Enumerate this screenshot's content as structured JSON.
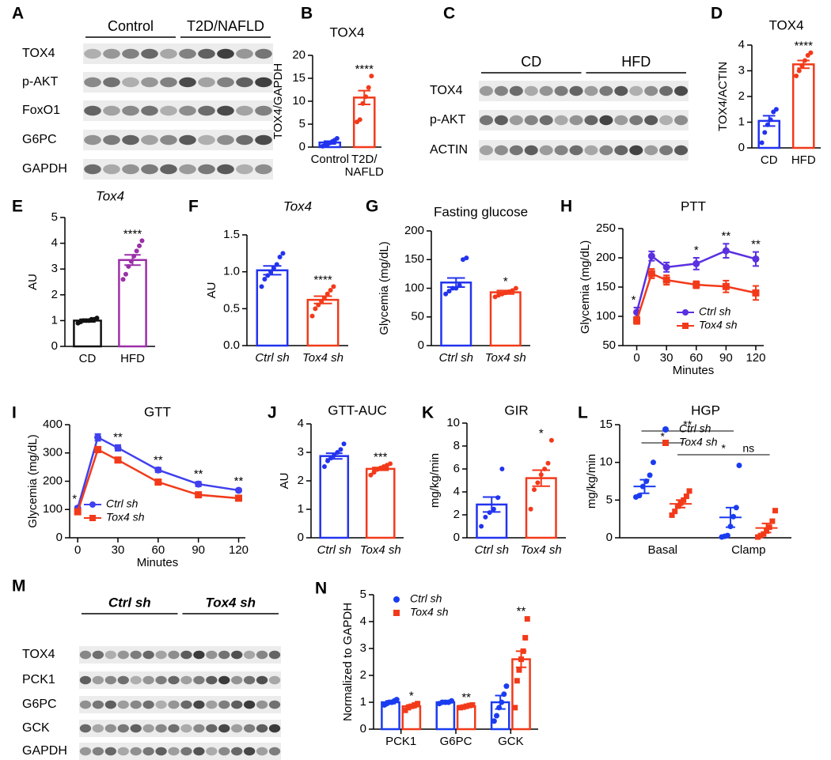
{
  "blots": [
    {
      "panel": "A",
      "groups": [
        "Control",
        "T2D/NAFLD"
      ],
      "rows": [
        "TOX4",
        "p-AKT",
        "FoxO1",
        "G6PC",
        "GAPDH"
      ]
    },
    {
      "panel": "C",
      "groups": [
        "CD",
        "HFD"
      ],
      "rows": [
        "TOX4",
        "p-AKT",
        "ACTIN"
      ]
    },
    {
      "panel": "M",
      "groups": [
        "Ctrl sh",
        "Tox4 sh"
      ],
      "rows": [
        "TOX4",
        "PCK1",
        "G6PC",
        "GCK",
        "GAPDH"
      ]
    }
  ],
  "chart_data": [
    {
      "type": "bar",
      "panel": "B",
      "title": "TOX4",
      "ylabel": "TOX4/GAPDH",
      "categories": [
        "Control",
        [
          "T2D/",
          "NAFLD"
        ]
      ],
      "colors": [
        "#2233ee",
        "#f23a1a"
      ],
      "values": [
        1.0,
        10.8
      ],
      "errors": [
        0.3,
        1.5
      ],
      "points": [
        [
          0.2,
          0.4,
          0.6,
          0.9,
          1.2,
          1.5,
          1.9
        ],
        [
          5.5,
          6,
          9.5,
          11,
          13,
          15.5
        ]
      ],
      "ylim": [
        0,
        20
      ],
      "yticks": [
        0,
        5,
        10,
        15,
        20
      ],
      "significance": [
        {
          "index": 1,
          "text": "****"
        }
      ]
    },
    {
      "type": "bar",
      "panel": "D",
      "title": "TOX4",
      "ylabel": "TOX4/ACTIN",
      "categories": [
        "CD",
        "HFD"
      ],
      "colors": [
        "#2233ee",
        "#f23a1a"
      ],
      "values": [
        1.05,
        3.25
      ],
      "errors": [
        0.2,
        0.15
      ],
      "points": [
        [
          0.2,
          0.6,
          0.9,
          1.1,
          1.4,
          1.5
        ],
        [
          2.8,
          3.0,
          3.2,
          3.4,
          3.6,
          3.7
        ]
      ],
      "ylim": [
        0,
        4
      ],
      "yticks": [
        0,
        1,
        2,
        3,
        4
      ],
      "significance": [
        {
          "index": 1,
          "text": "****"
        }
      ]
    },
    {
      "type": "bar",
      "panel": "E",
      "title": "Tox4",
      "title_italic": true,
      "ylabel": "AU",
      "categories": [
        "CD",
        "HFD"
      ],
      "colors": [
        "#111111",
        "#9b2fa8"
      ],
      "values": [
        1.0,
        3.35
      ],
      "errors": [
        0.05,
        0.2
      ],
      "points": [
        [
          0.9,
          0.95,
          1,
          1,
          1,
          1.05,
          1.05,
          1.1
        ],
        [
          2.6,
          2.8,
          3.1,
          3.3,
          3.5,
          3.7,
          3.9,
          4.1
        ]
      ],
      "ylim": [
        0,
        5
      ],
      "yticks": [
        0,
        1,
        2,
        3,
        4,
        5
      ],
      "significance": [
        {
          "index": 1,
          "text": "****"
        }
      ]
    },
    {
      "type": "bar",
      "panel": "F",
      "title": "Tox4",
      "title_italic": true,
      "category_italic": true,
      "ylabel": "AU",
      "categories": [
        "Ctrl sh",
        "Tox4 sh"
      ],
      "colors": [
        "#2233ee",
        "#f23a1a"
      ],
      "values": [
        1.02,
        0.62
      ],
      "errors": [
        0.06,
        0.05
      ],
      "points": [
        [
          0.8,
          0.9,
          0.95,
          1.0,
          1.05,
          1.1,
          1.2,
          1.25
        ],
        [
          0.4,
          0.5,
          0.55,
          0.6,
          0.65,
          0.7,
          0.75,
          0.8
        ]
      ],
      "ylim": [
        0,
        1.5
      ],
      "yticks": [
        {
          "value": 0,
          "label": "0.0"
        },
        0.5,
        {
          "value": 1,
          "label": "1.0"
        },
        1.5
      ],
      "significance": [
        {
          "index": 1,
          "text": "****"
        }
      ]
    },
    {
      "type": "bar",
      "panel": "G",
      "title": "Fasting glucose",
      "category_italic": true,
      "ylabel": "Glycemia (mg/dL)",
      "categories": [
        "Ctrl sh",
        "Tox4 sh"
      ],
      "colors": [
        "#2233ee",
        "#f23a1a"
      ],
      "values": [
        110,
        93
      ],
      "errors": [
        8,
        3
      ],
      "points": [
        [
          90,
          95,
          100,
          100,
          105,
          150,
          153
        ],
        [
          85,
          88,
          90,
          92,
          94,
          96,
          100
        ]
      ],
      "ylim": [
        0,
        200
      ],
      "yticks": [
        0,
        50,
        100,
        150,
        200
      ],
      "significance": [
        {
          "index": 1,
          "text": "*"
        }
      ]
    },
    {
      "type": "line",
      "panel": "H",
      "title": "PTT",
      "ylabel": "Glycemia (mg/dL)",
      "xlabel": "Minutes",
      "x": [
        0,
        15,
        30,
        60,
        90,
        120
      ],
      "xlim": [
        -14,
        128
      ],
      "xticks": [
        0,
        30,
        60,
        90,
        120
      ],
      "ylim": [
        50,
        250
      ],
      "yticks": [
        50,
        100,
        150,
        200,
        250
      ],
      "legend": "lower right",
      "series": [
        {
          "name": "Ctrl sh",
          "color": "#5a30e0",
          "marker": "circle",
          "values": [
            107,
            203,
            184,
            190,
            212,
            198
          ],
          "errors": [
            8,
            8,
            8,
            10,
            12,
            12
          ]
        },
        {
          "name": "Tox4 sh",
          "color": "#f23a1a",
          "marker": "square",
          "values": [
            93,
            173,
            162,
            154,
            151,
            140
          ],
          "errors": [
            6,
            8,
            8,
            6,
            10,
            12
          ]
        }
      ],
      "significance": [
        {
          "index": 0,
          "text": "*"
        },
        {
          "index": 3,
          "text": "*"
        },
        {
          "index": 4,
          "text": "**"
        },
        {
          "index": 5,
          "text": "**"
        }
      ]
    },
    {
      "type": "line",
      "panel": "I",
      "title": "GTT",
      "ylabel": "Glycemia (mg/dL)",
      "xlabel": "Minutes",
      "x": [
        0,
        15,
        30,
        60,
        90,
        120
      ],
      "xlim": [
        -6,
        125
      ],
      "xticks": [
        0,
        30,
        60,
        90,
        120
      ],
      "ylim": [
        0,
        400
      ],
      "yticks": [
        0,
        100,
        200,
        300,
        400
      ],
      "legend": "lower left",
      "series": [
        {
          "name": "Ctrl sh",
          "color": "#4040ee",
          "marker": "circle",
          "values": [
            105,
            355,
            318,
            240,
            190,
            168
          ],
          "errors": [
            5,
            12,
            10,
            8,
            8,
            5
          ]
        },
        {
          "name": "Tox4 sh",
          "color": "#f23a1a",
          "marker": "square",
          "values": [
            92,
            312,
            275,
            197,
            152,
            140
          ],
          "errors": [
            4,
            10,
            8,
            6,
            5,
            4
          ]
        }
      ],
      "significance": [
        {
          "index": 0,
          "text": "*"
        },
        {
          "index": 2,
          "text": "**"
        },
        {
          "index": 3,
          "text": "**"
        },
        {
          "index": 4,
          "text": "**"
        },
        {
          "index": 5,
          "text": "**"
        }
      ]
    },
    {
      "type": "bar",
      "panel": "J",
      "title": "GTT-AUC",
      "category_italic": true,
      "ylabel": "AU",
      "categories": [
        "Ctrl sh",
        "Tox4 sh"
      ],
      "colors": [
        "#2233ee",
        "#f23a1a"
      ],
      "values": [
        2.87,
        2.42
      ],
      "errors": [
        0.1,
        0.05
      ],
      "points": [
        [
          2.5,
          2.7,
          2.8,
          2.9,
          3.0,
          3.1,
          3.3
        ],
        [
          2.2,
          2.3,
          2.4,
          2.45,
          2.5,
          2.55,
          2.6
        ]
      ],
      "ylim": [
        0,
        4
      ],
      "yticks": [
        0,
        1,
        2,
        3,
        4
      ],
      "significance": [
        {
          "index": 1,
          "text": "***"
        }
      ]
    },
    {
      "type": "bar",
      "panel": "K",
      "title": "GIR",
      "category_italic": true,
      "ylabel": "mg/kg/min",
      "categories": [
        "Ctrl sh",
        "Tox4 sh"
      ],
      "colors": [
        "#2233ee",
        "#f23a1a"
      ],
      "values": [
        2.9,
        5.2
      ],
      "errors": [
        0.65,
        0.7
      ],
      "points": [
        [
          1.0,
          1.8,
          2.2,
          2.5,
          3.5,
          6.0
        ],
        [
          2.5,
          4.2,
          4.8,
          5.5,
          6.0,
          6.5,
          8.5
        ]
      ],
      "ylim": [
        0,
        10
      ],
      "yticks": [
        0,
        2,
        4,
        6,
        8,
        10
      ],
      "significance": [
        {
          "index": 1,
          "text": "*"
        }
      ]
    },
    {
      "type": "dot",
      "panel": "L",
      "title": "HGP",
      "ylabel": "mg/kg/min",
      "categories": [
        "Basal",
        "Clamp"
      ],
      "ylim": [
        0,
        15
      ],
      "yticks": [
        0,
        5,
        10,
        15
      ],
      "legend": "upper right",
      "series": [
        {
          "name": "Ctrl sh",
          "color": "#1a3cf0",
          "marker": "circle",
          "values": [
            6.8,
            2.7
          ],
          "errors": [
            0.9,
            1.3
          ],
          "points": [
            [
              5.4,
              5.6,
              6.8,
              7.5,
              8.3,
              10.0
            ],
            [
              0.1,
              0.2,
              0.3,
              1.5,
              2.8,
              4.0,
              9.6
            ]
          ]
        },
        {
          "name": "Tox4 sh",
          "color": "#f23a1a",
          "marker": "square",
          "values": [
            4.5,
            1.3
          ],
          "errors": [
            0.5,
            0.6
          ],
          "points": [
            [
              3.0,
              3.5,
              4.2,
              4.6,
              5.0,
              5.5,
              6.2
            ],
            [
              0.1,
              0.3,
              0.5,
              0.9,
              1.4,
              2.2,
              3.6
            ]
          ]
        }
      ],
      "comparisons": [
        {
          "from": [
            0,
            0
          ],
          "to": [
            1,
            0
          ],
          "text": "**"
        },
        {
          "from": [
            0,
            0
          ],
          "to": [
            0,
            1
          ],
          "text": "*"
        },
        {
          "from": [
            0,
            1
          ],
          "to": [
            1,
            1
          ],
          "text": "*"
        },
        {
          "from": [
            1,
            0
          ],
          "to": [
            1,
            1
          ],
          "text": "ns"
        }
      ]
    },
    {
      "type": "grouped_bar",
      "panel": "N",
      "ylabel": "Normalized to GAPDH",
      "categories": [
        "PCK1",
        "G6PC",
        "GCK"
      ],
      "ylim": [
        0,
        5
      ],
      "yticks": [
        0,
        1,
        2,
        3,
        4,
        5
      ],
      "legend": "upper left",
      "series": [
        {
          "name": "Ctrl sh",
          "color": "#1a3cf0",
          "marker": "circle",
          "values": [
            1.0,
            1.0,
            1.0
          ],
          "errors": [
            0.05,
            0.05,
            0.25
          ],
          "points": [
            [
              0.9,
              0.95,
              1,
              1,
              1.05,
              1.1
            ],
            [
              0.95,
              1,
              1,
              1,
              1.05
            ],
            [
              0.3,
              0.5,
              0.8,
              1.0,
              1.3,
              1.6
            ]
          ]
        },
        {
          "name": "Tox4 sh",
          "color": "#f23a1a",
          "marker": "square",
          "values": [
            0.85,
            0.85,
            2.6
          ],
          "errors": [
            0.05,
            0.03,
            0.3
          ],
          "points": [
            [
              0.7,
              0.8,
              0.85,
              0.9,
              0.95
            ],
            [
              0.8,
              0.82,
              0.85,
              0.88,
              0.9
            ],
            [
              0.8,
              1.8,
              2.2,
              2.6,
              2.9,
              3.4,
              4.1
            ]
          ],
          "annotations": [
            "*",
            "**",
            "**"
          ]
        }
      ]
    }
  ]
}
